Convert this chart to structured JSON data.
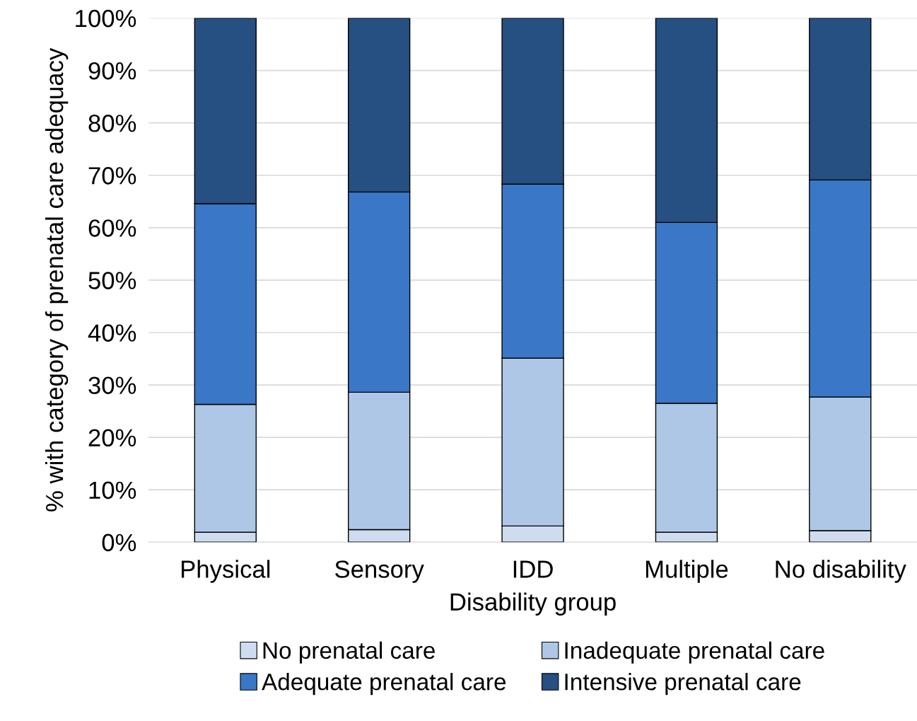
{
  "chart_data": {
    "type": "bar",
    "stacked": true,
    "xlabel": "Disability group",
    "ylabel": "% with category of prenatal care adequacy",
    "categories": [
      "Physical",
      "Sensory",
      "IDD",
      "Multiple",
      "No disability"
    ],
    "series": [
      {
        "name": "No prenatal care",
        "color": "#cfdcf0",
        "values": [
          1.9,
          2.4,
          3.1,
          1.9,
          2.2
        ]
      },
      {
        "name": "Inadequate prenatal care",
        "color": "#aec7e6",
        "values": [
          24.4,
          26.2,
          32.0,
          24.6,
          25.5
        ]
      },
      {
        "name": "Adequate prenatal care",
        "color": "#3a77c6",
        "values": [
          38.3,
          38.2,
          33.2,
          34.5,
          41.4
        ]
      },
      {
        "name": "Intensive prenatal care",
        "color": "#264f82",
        "values": [
          35.4,
          33.2,
          31.7,
          39.0,
          30.9
        ]
      }
    ],
    "ylim": [
      0,
      100
    ],
    "yticks": [
      {
        "value": 0,
        "label": "0%"
      },
      {
        "value": 10,
        "label": "10%"
      },
      {
        "value": 20,
        "label": "20%"
      },
      {
        "value": 30,
        "label": "30%"
      },
      {
        "value": 40,
        "label": "40%"
      },
      {
        "value": 50,
        "label": "50%"
      },
      {
        "value": 60,
        "label": "60%"
      },
      {
        "value": 70,
        "label": "70%"
      },
      {
        "value": 80,
        "label": "80%"
      },
      {
        "value": 90,
        "label": "90%"
      },
      {
        "value": 100,
        "label": "100%"
      }
    ],
    "grid": "y",
    "legend": "bottom"
  }
}
